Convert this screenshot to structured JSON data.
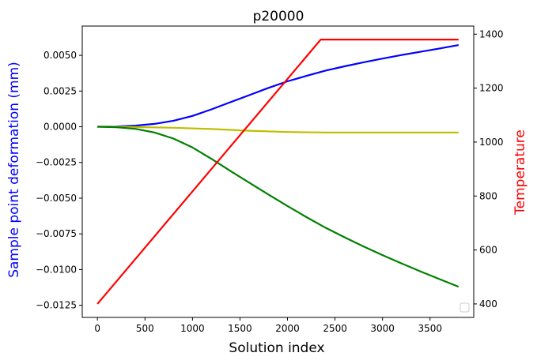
{
  "chart_data": {
    "type": "line",
    "title": "p20000",
    "xlabel": "Solution index",
    "ylabel_left": "Sample point deformation (mm)",
    "ylabel_right": "Temperature",
    "xlim": [
      -160,
      3960
    ],
    "ylim_left": [
      -0.01335,
      0.00705
    ],
    "ylim_right": [
      350,
      1430
    ],
    "grid": false,
    "legend": "empty box, lower-right",
    "x_ticks": [
      0,
      500,
      1000,
      1500,
      2000,
      2500,
      3000,
      3500
    ],
    "x_tick_labels": [
      "0",
      "500",
      "1000",
      "1500",
      "2000",
      "2500",
      "3000",
      "3500"
    ],
    "y_left_ticks": [
      0.005,
      0.0025,
      0.0,
      -0.0025,
      -0.005,
      -0.0075,
      -0.01,
      -0.0125
    ],
    "y_left_tick_labels": [
      "0.0050",
      "0.0025",
      "0.0000",
      "−0.0025",
      "−0.0050",
      "−0.0075",
      "−0.0100",
      "−0.0125"
    ],
    "y_right_ticks": [
      1400,
      1200,
      1000,
      800,
      600,
      400
    ],
    "y_right_tick_labels": [
      "1400",
      "1200",
      "1000",
      "800",
      "600",
      "400"
    ],
    "colors": {
      "ylabel_left": "#0000ff",
      "ylabel_right": "#ff0000"
    },
    "series": [
      {
        "axis": "left",
        "color": "#0000ff",
        "x": [
          0,
          200,
          400,
          600,
          800,
          1000,
          1200,
          1400,
          1600,
          1800,
          2000,
          2200,
          2400,
          2600,
          2800,
          3000,
          3200,
          3400,
          3600,
          3800
        ],
        "y": [
          0.0,
          2e-05,
          8e-05,
          0.0002,
          0.00042,
          0.00076,
          0.00122,
          0.00172,
          0.00222,
          0.00272,
          0.00318,
          0.00356,
          0.00393,
          0.00423,
          0.00451,
          0.00477,
          0.00502,
          0.00525,
          0.00548,
          0.00572
        ]
      },
      {
        "axis": "left",
        "color": "#bfbf00",
        "x": [
          0,
          400,
          800,
          1200,
          1600,
          2000,
          2400,
          2800,
          3200,
          3600,
          3800
        ],
        "y": [
          0.0,
          -2e-05,
          -7e-05,
          -0.00016,
          -0.00028,
          -0.00037,
          -0.0004,
          -0.0004,
          -0.0004,
          -0.0004,
          -0.0004
        ]
      },
      {
        "axis": "left",
        "color": "#008000",
        "x": [
          0,
          200,
          400,
          600,
          800,
          1000,
          1200,
          1400,
          1600,
          1800,
          2000,
          2200,
          2400,
          2600,
          2800,
          3000,
          3200,
          3400,
          3600,
          3800
        ],
        "y": [
          0.0,
          -4e-05,
          -0.00015,
          -0.0004,
          -0.00083,
          -0.00145,
          -0.00225,
          -0.0031,
          -0.00393,
          -0.00475,
          -0.00555,
          -0.00633,
          -0.00707,
          -0.00774,
          -0.00838,
          -0.00899,
          -0.00957,
          -0.01013,
          -0.01067,
          -0.0112
        ]
      },
      {
        "axis": "right",
        "color": "#ff0000",
        "x": [
          0,
          2350,
          3800
        ],
        "y": [
          400,
          1380,
          1380
        ]
      }
    ]
  }
}
